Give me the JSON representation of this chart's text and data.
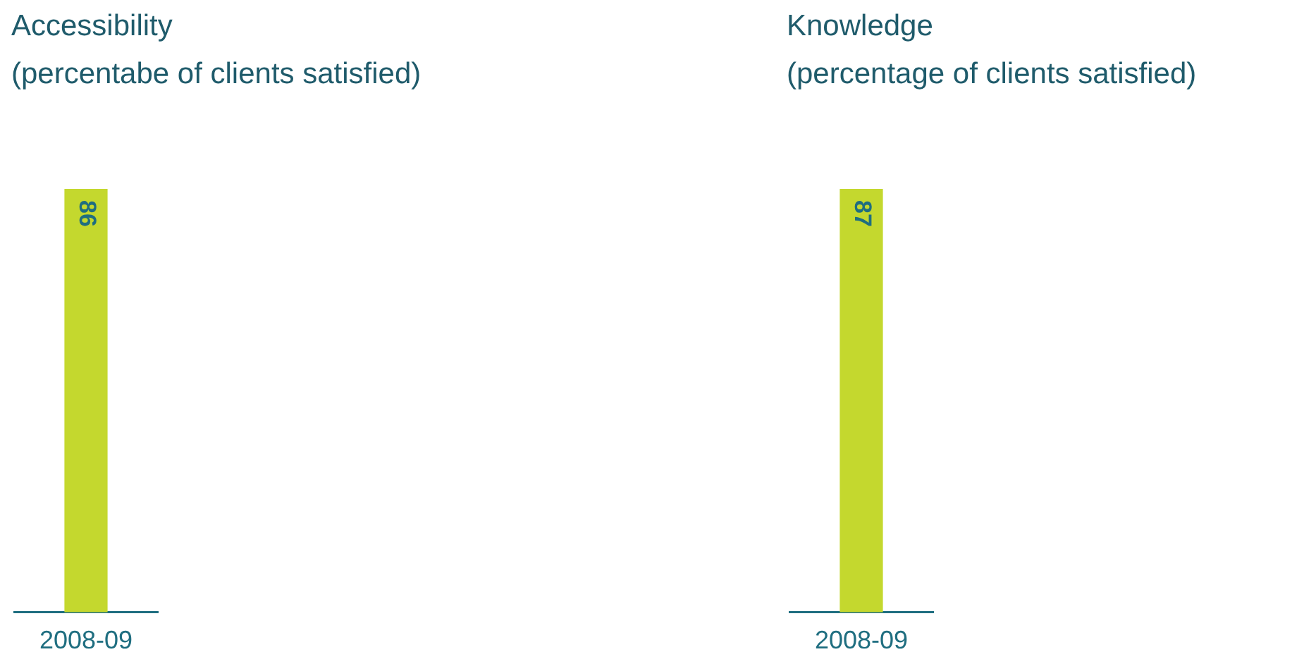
{
  "chart_data": [
    {
      "type": "bar",
      "title": "Accessibility",
      "subtitle": "(percentabe of clients satisfied)",
      "categories": [
        "2008-09"
      ],
      "values": [
        86
      ],
      "color": "#c4d82e",
      "data_labels": true
    },
    {
      "type": "bar",
      "title": "Knowledge",
      "subtitle": "(percentage of clients satisfied)",
      "categories": [
        "2008-09"
      ],
      "values": [
        87
      ],
      "color": "#c4d82e",
      "data_labels": true
    }
  ]
}
